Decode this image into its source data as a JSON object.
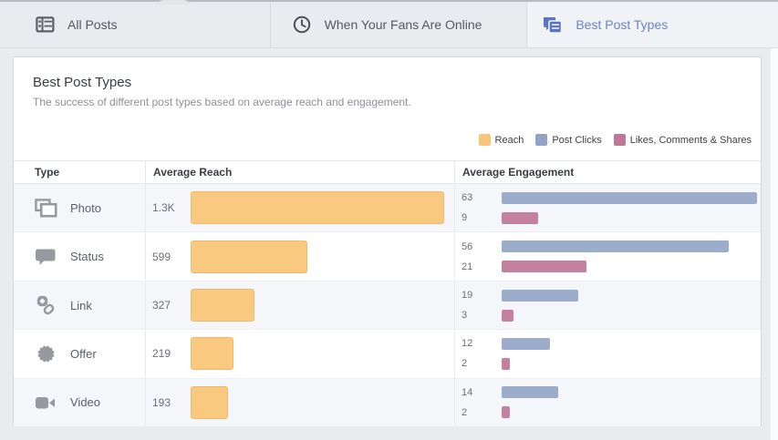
{
  "tabs": [
    {
      "label": "All Posts",
      "icon": "all-posts-icon",
      "active": false
    },
    {
      "label": "When Your Fans Are Online",
      "icon": "clock-icon",
      "active": false
    },
    {
      "label": "Best Post Types",
      "icon": "post-types-icon",
      "active": true
    }
  ],
  "panel": {
    "title": "Best Post Types",
    "subtitle": "The success of different post types based on average reach and engagement."
  },
  "legend": [
    {
      "label": "Reach",
      "color": "#f8c77d"
    },
    {
      "label": "Post Clicks",
      "color": "#92a3c5"
    },
    {
      "label": "Likes, Comments & Shares",
      "color": "#c0769a"
    }
  ],
  "colors": {
    "reach_bar": "#f9c980",
    "post_clicks_bar": "#9cadcc",
    "likes_comments_shares_bar": "#c3809f",
    "accent_blue": "#6d84c1"
  },
  "table": {
    "columns": [
      "Type",
      "Average Reach",
      "Average Engagement"
    ],
    "reach_max": 1300,
    "engagement_max": 63,
    "rows": [
      {
        "type": "Photo",
        "reach_label": "1.3K",
        "reach": 1300,
        "post_clicks": 63,
        "likes_comments_shares": 9
      },
      {
        "type": "Status",
        "reach_label": "599",
        "reach": 599,
        "post_clicks": 56,
        "likes_comments_shares": 21
      },
      {
        "type": "Link",
        "reach_label": "327",
        "reach": 327,
        "post_clicks": 19,
        "likes_comments_shares": 3
      },
      {
        "type": "Offer",
        "reach_label": "219",
        "reach": 219,
        "post_clicks": 12,
        "likes_comments_shares": 2
      },
      {
        "type": "Video",
        "reach_label": "193",
        "reach": 193,
        "post_clicks": 14,
        "likes_comments_shares": 2
      }
    ]
  },
  "chart_data": {
    "type": "bar",
    "categories": [
      "Photo",
      "Status",
      "Link",
      "Offer",
      "Video"
    ],
    "series": [
      {
        "name": "Reach",
        "values": [
          1300,
          599,
          327,
          219,
          193
        ]
      },
      {
        "name": "Post Clicks",
        "values": [
          63,
          56,
          19,
          12,
          14
        ]
      },
      {
        "name": "Likes, Comments & Shares",
        "values": [
          9,
          21,
          3,
          2,
          2
        ]
      }
    ],
    "title": "Best Post Types",
    "xlabel": "Type",
    "ylabel": "Average Reach / Average Engagement",
    "legend_position": "top-right",
    "grid": false
  }
}
